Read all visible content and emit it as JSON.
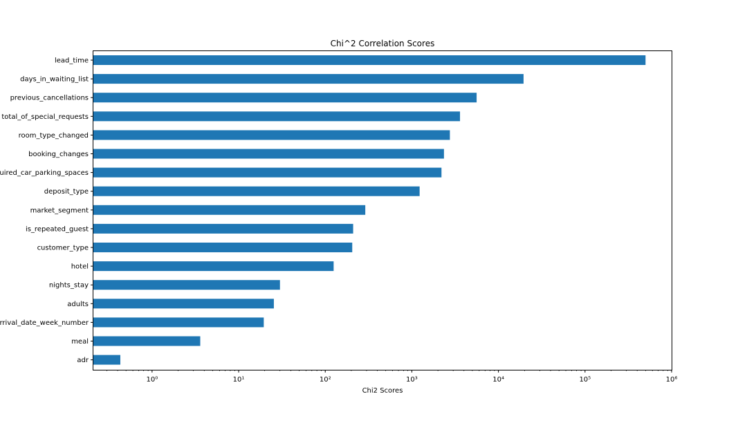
{
  "chart_data": {
    "type": "bar",
    "orientation": "horizontal",
    "title": "Chi^2 Correlation Scores",
    "xlabel": "Chi2 Scores",
    "ylabel": "",
    "xscale": "log",
    "xlim": [
      0.21,
      1000000
    ],
    "grid": false,
    "legend": "none",
    "bar_color": "#1f77b4",
    "categories": [
      "lead_time",
      "days_in_waiting_list",
      "previous_cancellations",
      "total_of_special_requests",
      "room_type_changed",
      "booking_changes",
      "required_car_parking_spaces",
      "deposit_type",
      "market_segment",
      "is_repeated_guest",
      "customer_type",
      "hotel",
      "nights_stay",
      "adults",
      "arrival_date_week_number",
      "meal",
      "adr"
    ],
    "values": [
      500000,
      19500,
      5600,
      3600,
      2750,
      2350,
      2200,
      1230,
      290,
      210,
      205,
      125,
      30,
      25.5,
      19.5,
      3.6,
      0.43
    ],
    "xticks": [
      {
        "value": 1,
        "label": "10⁰"
      },
      {
        "value": 10,
        "label": "10¹"
      },
      {
        "value": 100,
        "label": "10²"
      },
      {
        "value": 1000,
        "label": "10³"
      },
      {
        "value": 10000,
        "label": "10⁴"
      },
      {
        "value": 100000,
        "label": "10⁵"
      },
      {
        "value": 1000000,
        "label": "10⁶"
      }
    ]
  }
}
